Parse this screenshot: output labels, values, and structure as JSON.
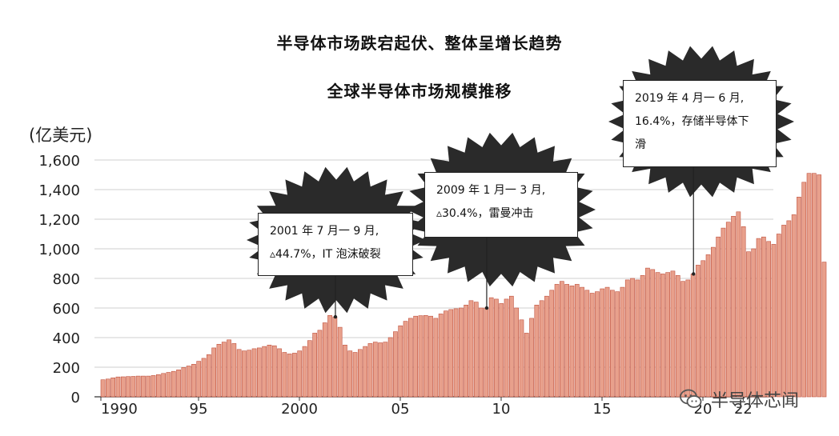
{
  "title": "半导体市场跌宕起伏、整体呈增长趋势",
  "subtitle": "全球半导体市场规模推移",
  "unit_label": "(亿美元)",
  "callouts": {
    "c2001": {
      "line1": "2001 年 7 月一 9 月,",
      "line2": "▵44.7%，IT 泡沫破裂"
    },
    "c2009": {
      "line1": "2009 年 1 月一 3 月,",
      "line2": "▵30.4%，雷曼冲击"
    },
    "c2019": {
      "line1": "2019 年 4 月一 6 月,",
      "line2": "16.4%，存储半导体下",
      "line3": "滑"
    }
  },
  "watermark": {
    "text": "半导体芯闻",
    "icon": "wechat-icon"
  },
  "colors": {
    "bar_fill": "#e8a08c",
    "bar_stroke": "#c0503c",
    "grid": "#cfcfcf",
    "starburst": "#2a2a2a"
  },
  "chart_data": {
    "type": "bar",
    "ylabel": "(亿美元)",
    "ylim": [
      0,
      1600
    ],
    "yticks": [
      "0",
      "200",
      "400",
      "600",
      "800",
      "1,000",
      "1,200",
      "1,400",
      "1,600"
    ],
    "ytick_values": [
      0,
      200,
      400,
      600,
      800,
      1000,
      1200,
      1400,
      1600
    ],
    "xticks": [
      "1990",
      "95",
      "2000",
      "05",
      "10",
      "15",
      "20",
      "22"
    ],
    "xtick_index": [
      0,
      20,
      40,
      60,
      80,
      100,
      120,
      128
    ],
    "x_start_label": "1990 Q1",
    "x_frequency": "quarterly",
    "grid": true,
    "values": [
      115,
      120,
      128,
      134,
      135,
      137,
      138,
      140,
      140,
      140,
      144,
      150,
      158,
      165,
      172,
      182,
      198,
      208,
      220,
      240,
      260,
      285,
      330,
      355,
      370,
      385,
      360,
      320,
      310,
      315,
      325,
      330,
      340,
      350,
      345,
      325,
      300,
      290,
      295,
      310,
      340,
      380,
      430,
      450,
      500,
      550,
      540,
      470,
      350,
      310,
      300,
      320,
      340,
      360,
      370,
      365,
      370,
      400,
      440,
      480,
      510,
      530,
      545,
      548,
      550,
      545,
      530,
      560,
      580,
      590,
      595,
      600,
      620,
      650,
      640,
      600,
      600,
      670,
      660,
      630,
      660,
      680,
      600,
      520,
      430,
      530,
      620,
      650,
      680,
      720,
      760,
      780,
      760,
      750,
      760,
      740,
      720,
      700,
      710,
      730,
      740,
      720,
      710,
      740,
      790,
      800,
      790,
      820,
      870,
      860,
      840,
      830,
      840,
      850,
      820,
      780,
      790,
      830,
      890,
      920,
      960,
      1010,
      1080,
      1140,
      1180,
      1220,
      1250,
      1150,
      980,
      1000,
      1070,
      1080,
      1050,
      1030,
      1100,
      1160,
      1190,
      1230,
      1350,
      1450,
      1510,
      1510,
      1500,
      910
    ],
    "annotations": [
      {
        "period": "2001 Q3",
        "index": 46,
        "text": "2001 年 7 月一 9 月, ▵44.7%，IT 泡沫破裂"
      },
      {
        "period": "2009 Q1",
        "index": 76,
        "text": "2009 年 1 月一 3 月, ▵30.4%，雷曼冲击"
      },
      {
        "period": "2019 Q2",
        "index": 117,
        "text": "2019 年 4 月一 6 月, 16.4%，存储半导体下滑"
      }
    ]
  }
}
